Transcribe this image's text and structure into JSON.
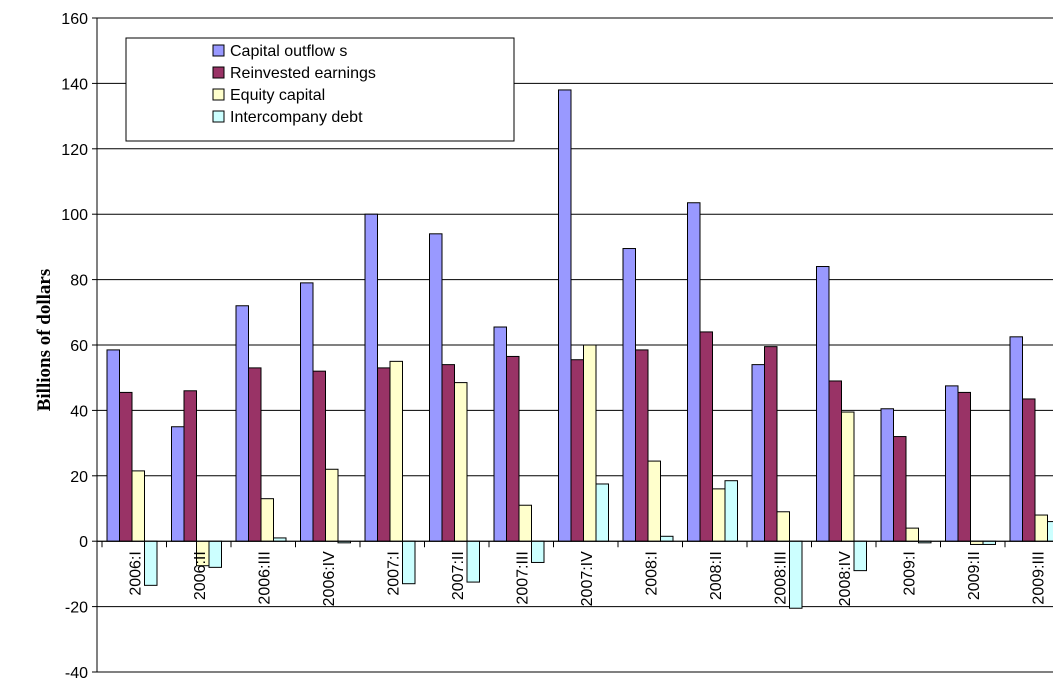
{
  "chart_data": {
    "type": "bar",
    "title": "",
    "xlabel": "",
    "ylabel": "Billions of dollars",
    "ylim": [
      -40,
      160
    ],
    "yticks": [
      -40,
      -20,
      0,
      20,
      40,
      60,
      80,
      100,
      120,
      140,
      160
    ],
    "grid": true,
    "legend_position": "top-left",
    "categories": [
      "2006:I",
      "2006:II",
      "2006:III",
      "2006:IV",
      "2007:I",
      "2007:II",
      "2007:III",
      "2007:IV",
      "2008:I",
      "2008:II",
      "2008:III",
      "2008:IV",
      "2009:I",
      "2009:II",
      "2009:III"
    ],
    "series": [
      {
        "name": "Capital outflow s",
        "color": "#9999ff",
        "values": [
          58.5,
          35,
          72,
          79,
          100,
          94,
          65.5,
          138,
          89.5,
          103.5,
          54,
          84,
          40.5,
          47.5,
          62.5
        ]
      },
      {
        "name": "Reinvested earnings",
        "color": "#993366",
        "values": [
          45.5,
          46,
          53,
          52,
          53,
          54,
          56.5,
          55.5,
          58.5,
          64,
          59.5,
          49,
          32,
          45.5,
          43.5
        ]
      },
      {
        "name": "Equity capital",
        "color": "#ffffcc",
        "values": [
          21.5,
          -7.5,
          13,
          22,
          55,
          48.5,
          11,
          60,
          24.5,
          16,
          9,
          39.5,
          4,
          -1,
          8
        ]
      },
      {
        "name": "Intercompany debt",
        "color": "#ccffff",
        "values": [
          -13.5,
          -8,
          1,
          -0.5,
          -13,
          -12.5,
          -6.5,
          17.5,
          1.5,
          18.5,
          -20.5,
          -9,
          -0.5,
          -1,
          6
        ]
      }
    ]
  }
}
